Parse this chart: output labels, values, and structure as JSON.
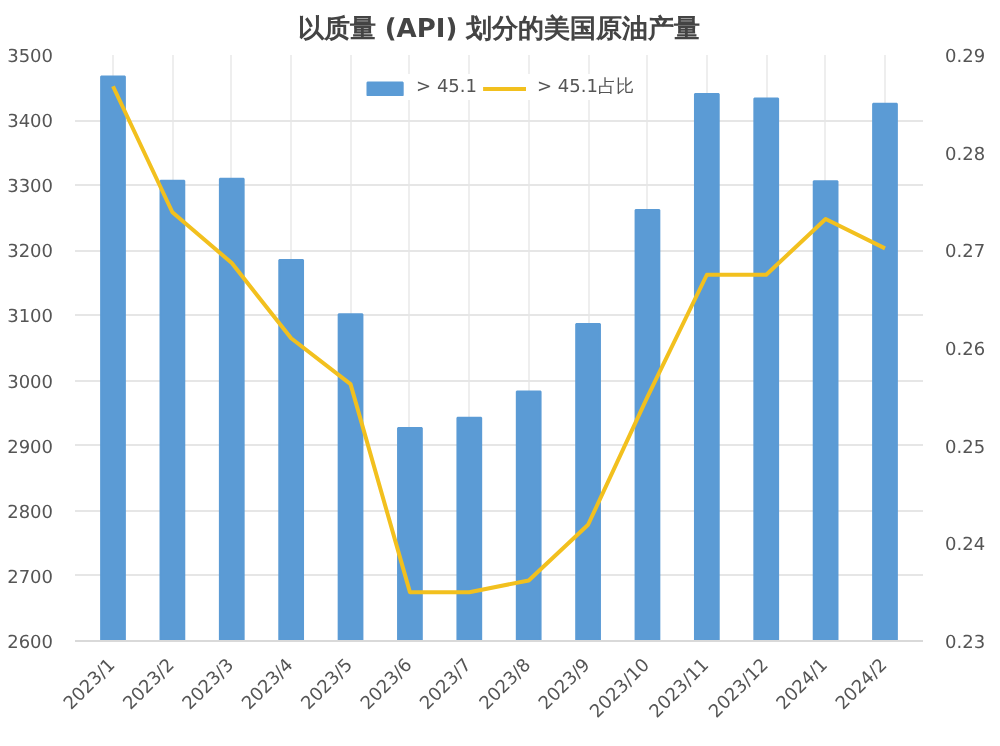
{
  "chart_data": {
    "type": "bar",
    "title": "以质量 (API) 划分的美国原油产量",
    "categories": [
      "2023/1",
      "2023/2",
      "2023/3",
      "2023/4",
      "2023/5",
      "2023/6",
      "2023/7",
      "2023/8",
      "2023/9",
      "2023/10",
      "2023/11",
      "2023/12",
      "2024/1",
      "2024/2"
    ],
    "series": [
      {
        "name": "> 45.1",
        "color": "#5b9bd5",
        "values": [
          3467,
          3307,
          3310,
          3185,
          3102,
          2927,
          2943,
          2983,
          3087,
          3262,
          3440,
          3433,
          3306,
          3425
        ]
      },
      {
        "name": "> 45.1占比",
        "type": "line",
        "axis": "y2",
        "color": "#f2c01e",
        "values": [
          0.2868,
          0.2739,
          0.2687,
          0.261,
          0.2563,
          0.235,
          0.235,
          0.2362,
          0.2419,
          0.255,
          0.2675,
          0.2675,
          0.2732,
          0.2702
        ]
      }
    ],
    "ylim": [
      2600,
      3500
    ],
    "yticks": [
      2600,
      2700,
      2800,
      2900,
      3000,
      3100,
      3200,
      3300,
      3400,
      3500
    ],
    "y2lim": [
      0.23,
      0.29
    ],
    "y2ticks": [
      0.23,
      0.24,
      0.25,
      0.26,
      0.27,
      0.28,
      0.29
    ],
    "grid": true,
    "legend": "top",
    "marker": "none",
    "line_style": "solid"
  }
}
